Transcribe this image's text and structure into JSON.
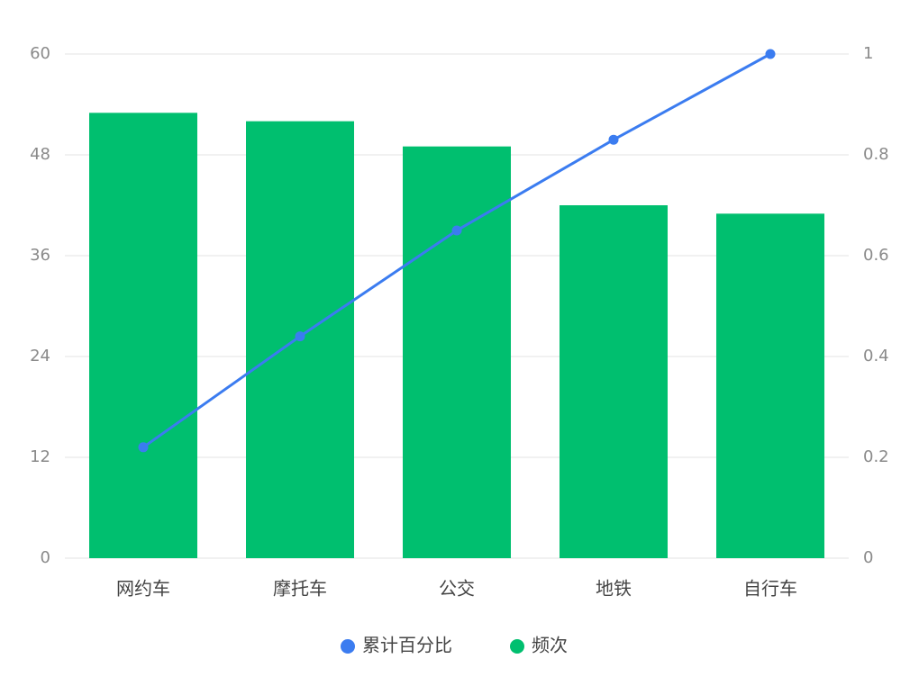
{
  "chart_data": {
    "type": "bar",
    "categories": [
      "网约车",
      "摩托车",
      "公交",
      "地铁",
      "自行车"
    ],
    "series": [
      {
        "name": "累计百分比",
        "type": "line",
        "axis": "y2",
        "color": "#3b7cf0",
        "values": [
          0.22,
          0.44,
          0.65,
          0.83,
          1
        ]
      },
      {
        "name": "频次",
        "type": "bar",
        "color": "#00bf6f",
        "values": [
          53,
          52,
          49,
          42,
          41
        ]
      }
    ],
    "ylim": [
      0,
      60
    ],
    "yticks": [
      0,
      12,
      24,
      36,
      48,
      60
    ],
    "y2lim": [
      0,
      1
    ],
    "y2ticks": [
      0,
      0.2,
      0.4,
      0.6,
      0.8,
      1
    ],
    "grid": true,
    "legend": "bottom"
  }
}
